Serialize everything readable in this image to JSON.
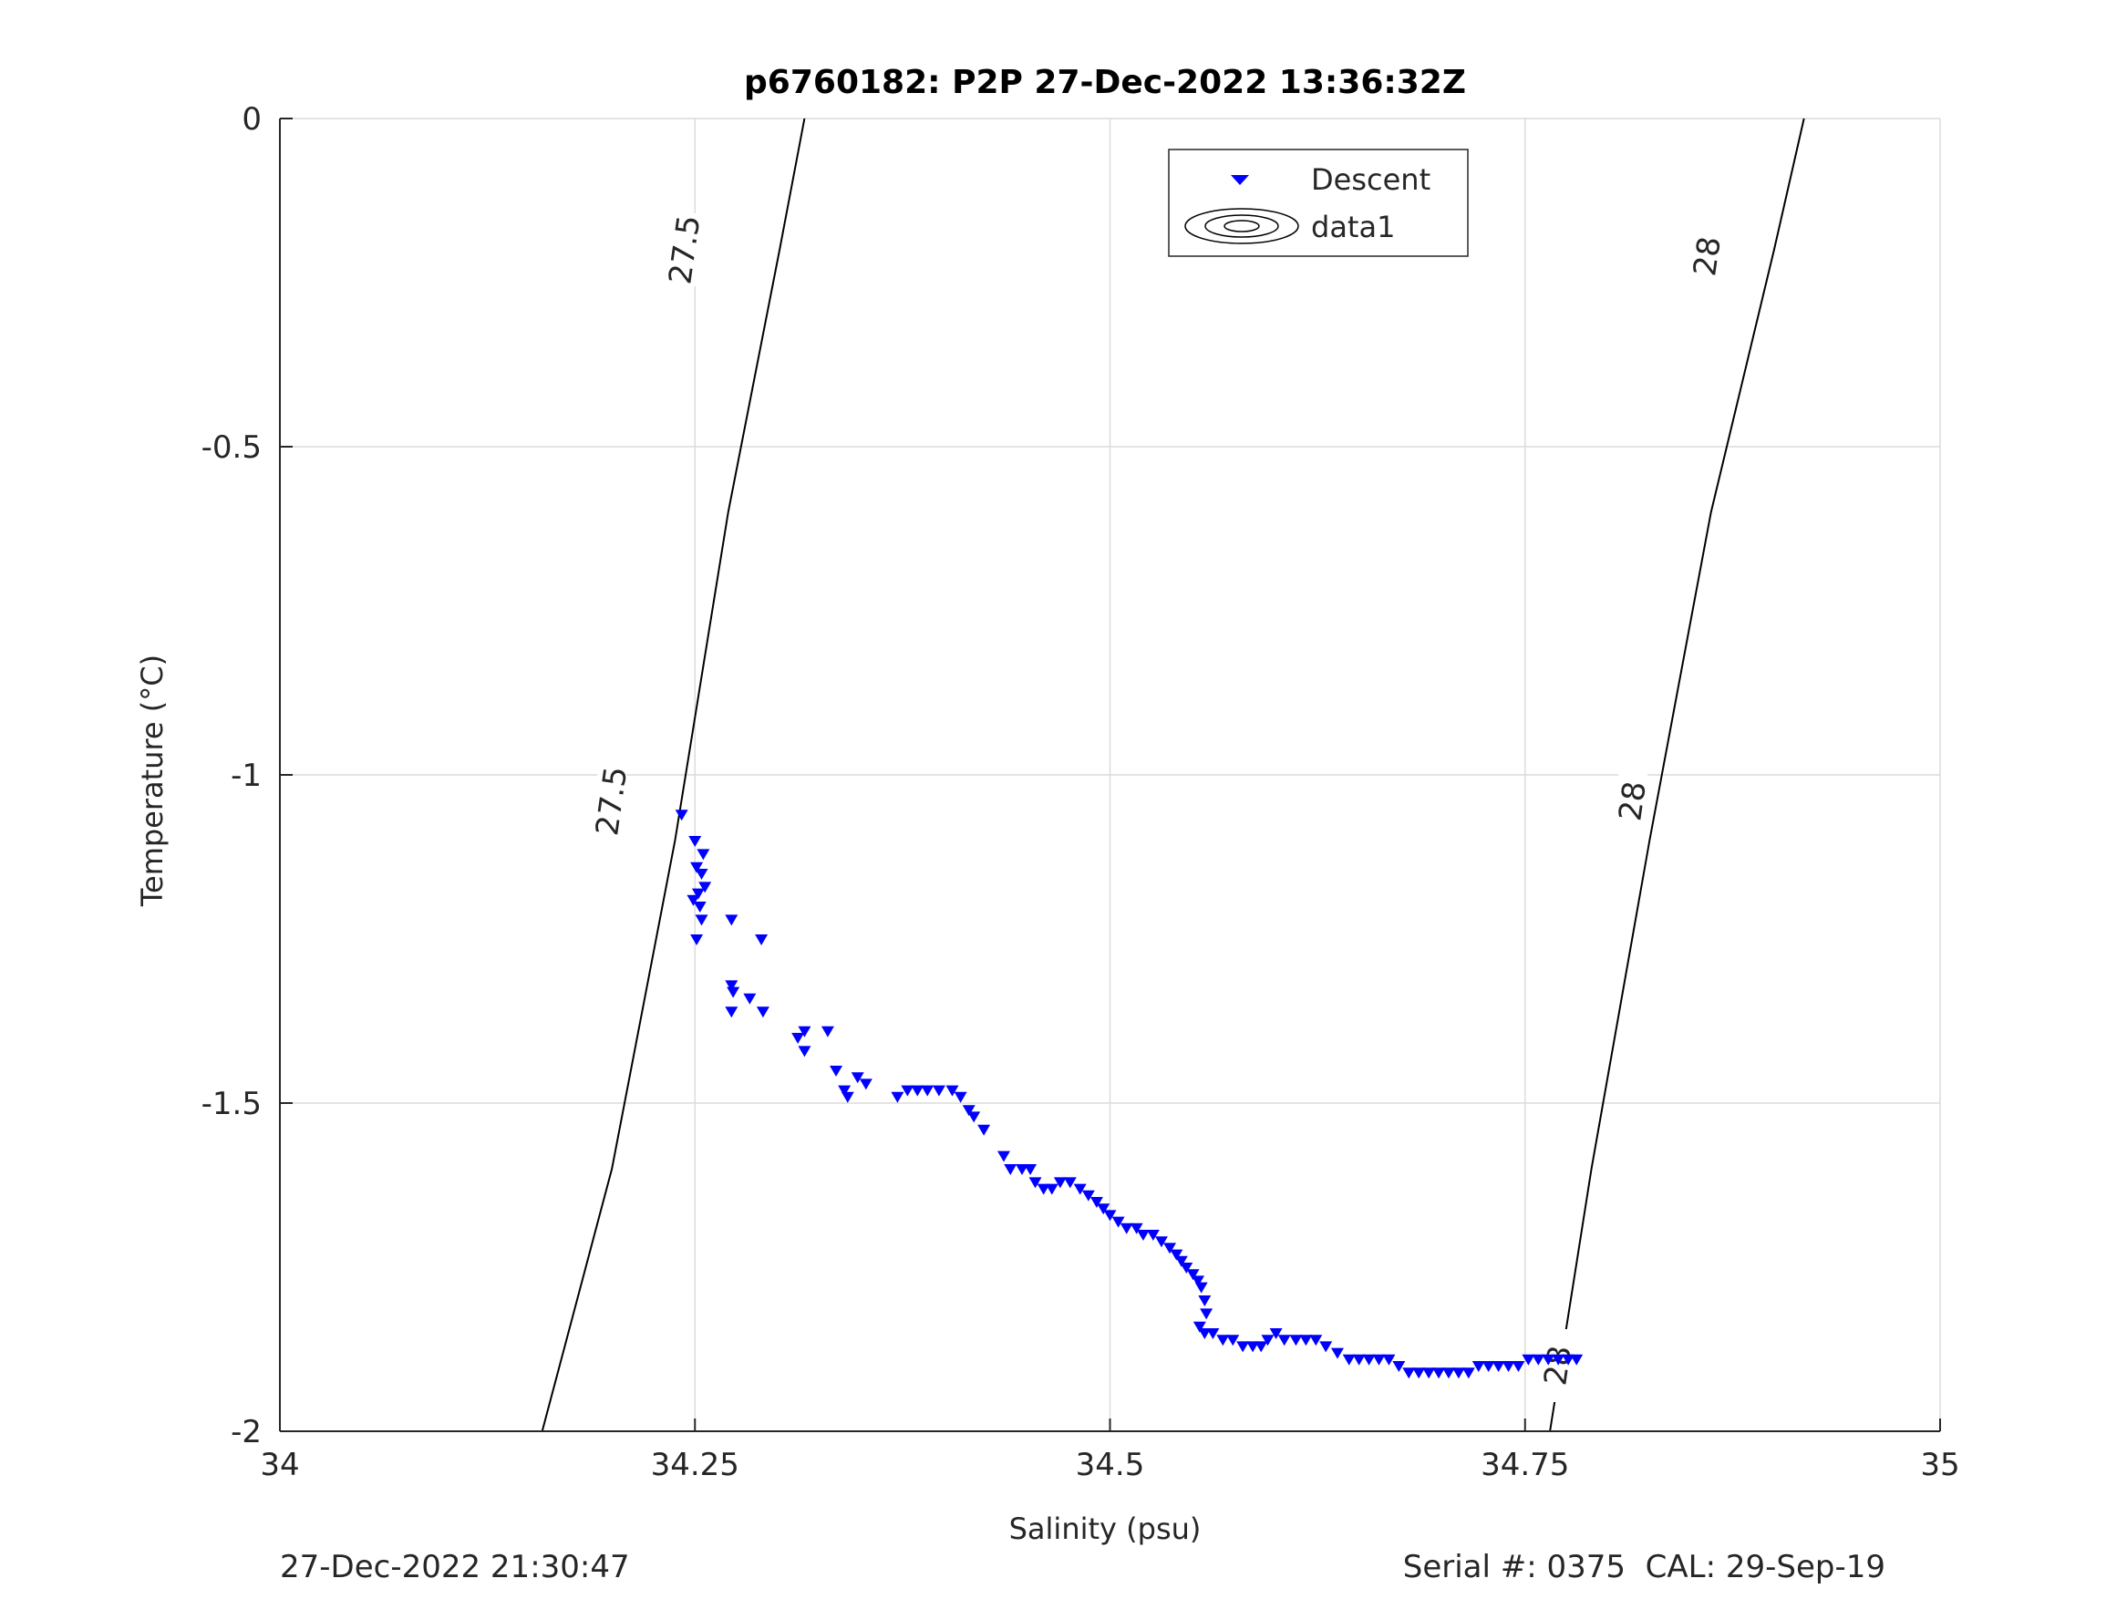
{
  "chart_data": {
    "type": "scatter",
    "title": "p6760182: P2P 27-Dec-2022 13:36:32Z",
    "xlabel": "Salinity (psu)",
    "ylabel": "Temperature (°C)",
    "xlim": [
      34,
      35
    ],
    "ylim": [
      -2,
      0
    ],
    "xticks": [
      "34",
      "34.25",
      "34.5",
      "34.75",
      "35"
    ],
    "yticks": [
      "0",
      "-0.5",
      "-1",
      "-1.5",
      "-2"
    ],
    "grid": true,
    "legend_position": "top-center",
    "legend": [
      "Descent",
      "data1"
    ],
    "series": [
      {
        "name": "Descent",
        "marker": "down-triangle",
        "color": "#0000ff",
        "points": [
          [
            34.242,
            -1.06
          ],
          [
            34.25,
            -1.1
          ],
          [
            34.255,
            -1.12
          ],
          [
            34.251,
            -1.14
          ],
          [
            34.254,
            -1.15
          ],
          [
            34.256,
            -1.17
          ],
          [
            34.252,
            -1.18
          ],
          [
            34.249,
            -1.19
          ],
          [
            34.253,
            -1.2
          ],
          [
            34.254,
            -1.22
          ],
          [
            34.251,
            -1.25
          ],
          [
            34.272,
            -1.22
          ],
          [
            34.29,
            -1.25
          ],
          [
            34.272,
            -1.32
          ],
          [
            34.273,
            -1.33
          ],
          [
            34.283,
            -1.34
          ],
          [
            34.272,
            -1.36
          ],
          [
            34.291,
            -1.36
          ],
          [
            34.312,
            -1.4
          ],
          [
            34.316,
            -1.39
          ],
          [
            34.33,
            -1.39
          ],
          [
            34.316,
            -1.42
          ],
          [
            34.335,
            -1.45
          ],
          [
            34.34,
            -1.48
          ],
          [
            34.342,
            -1.49
          ],
          [
            34.348,
            -1.46
          ],
          [
            34.353,
            -1.47
          ],
          [
            34.372,
            -1.49
          ],
          [
            34.378,
            -1.48
          ],
          [
            34.384,
            -1.48
          ],
          [
            34.39,
            -1.48
          ],
          [
            34.397,
            -1.48
          ],
          [
            34.405,
            -1.48
          ],
          [
            34.41,
            -1.49
          ],
          [
            34.415,
            -1.51
          ],
          [
            34.418,
            -1.52
          ],
          [
            34.424,
            -1.54
          ],
          [
            34.436,
            -1.58
          ],
          [
            34.44,
            -1.6
          ],
          [
            34.447,
            -1.6
          ],
          [
            34.452,
            -1.6
          ],
          [
            34.455,
            -1.62
          ],
          [
            34.46,
            -1.63
          ],
          [
            34.465,
            -1.63
          ],
          [
            34.47,
            -1.62
          ],
          [
            34.476,
            -1.62
          ],
          [
            34.482,
            -1.63
          ],
          [
            34.487,
            -1.64
          ],
          [
            34.492,
            -1.65
          ],
          [
            34.496,
            -1.66
          ],
          [
            34.5,
            -1.67
          ],
          [
            34.505,
            -1.68
          ],
          [
            34.51,
            -1.69
          ],
          [
            34.516,
            -1.69
          ],
          [
            34.52,
            -1.7
          ],
          [
            34.526,
            -1.7
          ],
          [
            34.531,
            -1.71
          ],
          [
            34.536,
            -1.72
          ],
          [
            34.54,
            -1.73
          ],
          [
            34.543,
            -1.74
          ],
          [
            34.546,
            -1.75
          ],
          [
            34.55,
            -1.76
          ],
          [
            34.553,
            -1.77
          ],
          [
            34.555,
            -1.78
          ],
          [
            34.557,
            -1.8
          ],
          [
            34.558,
            -1.82
          ],
          [
            34.554,
            -1.84
          ],
          [
            34.557,
            -1.85
          ],
          [
            34.562,
            -1.85
          ],
          [
            34.568,
            -1.86
          ],
          [
            34.574,
            -1.86
          ],
          [
            34.58,
            -1.87
          ],
          [
            34.586,
            -1.87
          ],
          [
            34.591,
            -1.87
          ],
          [
            34.595,
            -1.86
          ],
          [
            34.6,
            -1.85
          ],
          [
            34.605,
            -1.86
          ],
          [
            34.612,
            -1.86
          ],
          [
            34.618,
            -1.86
          ],
          [
            34.624,
            -1.86
          ],
          [
            34.63,
            -1.87
          ],
          [
            34.637,
            -1.88
          ],
          [
            34.644,
            -1.89
          ],
          [
            34.65,
            -1.89
          ],
          [
            34.656,
            -1.89
          ],
          [
            34.662,
            -1.89
          ],
          [
            34.668,
            -1.89
          ],
          [
            34.674,
            -1.9
          ],
          [
            34.68,
            -1.91
          ],
          [
            34.686,
            -1.91
          ],
          [
            34.692,
            -1.91
          ],
          [
            34.698,
            -1.91
          ],
          [
            34.704,
            -1.91
          ],
          [
            34.71,
            -1.91
          ],
          [
            34.716,
            -1.91
          ],
          [
            34.722,
            -1.9
          ],
          [
            34.728,
            -1.9
          ],
          [
            34.734,
            -1.9
          ],
          [
            34.74,
            -1.9
          ],
          [
            34.746,
            -1.9
          ],
          [
            34.752,
            -1.89
          ],
          [
            34.758,
            -1.89
          ],
          [
            34.764,
            -1.89
          ],
          [
            34.77,
            -1.89
          ],
          [
            34.776,
            -1.89
          ],
          [
            34.781,
            -1.89
          ]
        ]
      },
      {
        "name": "data1",
        "type": "contour",
        "color": "#000000",
        "levels": [
          {
            "label": "27.5",
            "points": [
              [
                34.158,
                -2.0
              ],
              [
                34.2,
                -1.6
              ],
              [
                34.238,
                -1.1
              ],
              [
                34.27,
                -0.6
              ],
              [
                34.301,
                -0.2
              ],
              [
                34.316,
                0.0
              ]
            ],
            "label_at": [
              [
                34.2,
                -1.04
              ],
              [
                34.244,
                -0.2
              ]
            ]
          },
          {
            "label": "28",
            "points": [
              [
                34.765,
                -2.0
              ],
              [
                34.79,
                -1.6
              ],
              [
                34.825,
                -1.1
              ],
              [
                34.862,
                -0.6
              ],
              [
                34.9,
                -0.2
              ],
              [
                34.918,
                0.0
              ]
            ],
            "label_at": [
              [
                34.77,
                -1.9
              ],
              [
                34.815,
                -1.04
              ],
              [
                34.86,
                -0.21
              ]
            ]
          }
        ]
      }
    ]
  },
  "footer": {
    "timestamp": "27-Dec-2022 21:30:47",
    "serial": "Serial #: 0375  CAL: 29-Sep-19"
  }
}
